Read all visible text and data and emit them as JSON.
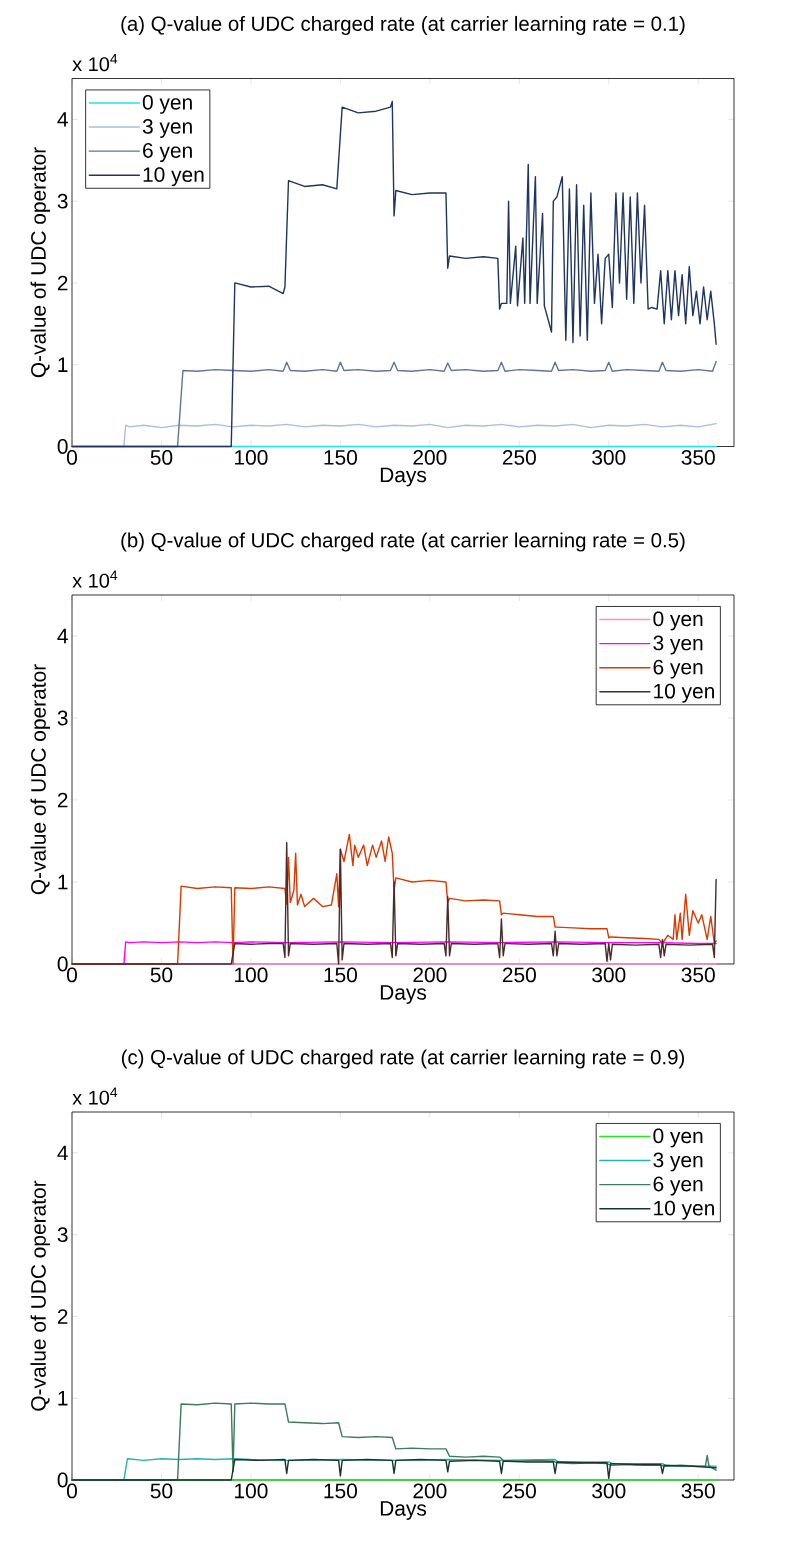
{
  "chart_data": [
    {
      "type": "line",
      "title": "(a) Q-value of UDC charged rate (at carrier learning rate = 0.1)",
      "xlabel": "Days",
      "ylabel": "Q-value of UDC operator",
      "annotations": [
        "x 10$^{4}$"
      ],
      "xlim": [
        0,
        370
      ],
      "ylim": [
        0,
        4.5
      ],
      "xticks": [
        0,
        50,
        100,
        150,
        200,
        250,
        300,
        350
      ],
      "yticks": [
        0,
        1,
        2,
        3,
        4
      ],
      "legend": "top left",
      "series": [
        {
          "name": "0 yen",
          "color": "#1ee6e6",
          "x": [
            0,
            360
          ],
          "values": [
            0,
            0
          ]
        },
        {
          "name": "3 yen",
          "color": "#a8bde6",
          "x": [
            0,
            29,
            30,
            32,
            40,
            50,
            60,
            70,
            80,
            90,
            100,
            110,
            120,
            130,
            140,
            150,
            160,
            170,
            180,
            190,
            200,
            210,
            220,
            230,
            240,
            250,
            260,
            270,
            280,
            290,
            300,
            310,
            320,
            330,
            340,
            350,
            360
          ],
          "values": [
            0,
            0,
            0.26,
            0.24,
            0.26,
            0.23,
            0.26,
            0.25,
            0.27,
            0.24,
            0.26,
            0.25,
            0.27,
            0.24,
            0.26,
            0.25,
            0.27,
            0.24,
            0.26,
            0.25,
            0.27,
            0.23,
            0.26,
            0.25,
            0.27,
            0.24,
            0.26,
            0.25,
            0.27,
            0.23,
            0.26,
            0.25,
            0.27,
            0.24,
            0.26,
            0.24,
            0.28
          ]
        },
        {
          "name": "6 yen",
          "color": "#5f7496",
          "x": [
            0,
            59,
            62,
            70,
            80,
            90,
            100,
            110,
            118,
            120,
            122,
            130,
            140,
            148,
            150,
            152,
            160,
            170,
            178,
            180,
            182,
            190,
            200,
            208,
            210,
            212,
            220,
            230,
            238,
            240,
            242,
            250,
            260,
            268,
            270,
            272,
            280,
            290,
            298,
            300,
            302,
            310,
            320,
            328,
            330,
            332,
            340,
            350,
            358,
            360
          ],
          "values": [
            0,
            0,
            0.93,
            0.92,
            0.94,
            0.93,
            0.92,
            0.94,
            0.92,
            1.03,
            0.93,
            0.92,
            0.94,
            0.92,
            1.03,
            0.93,
            0.94,
            0.92,
            0.93,
            1.03,
            0.93,
            0.92,
            0.94,
            0.92,
            1.02,
            0.93,
            0.94,
            0.92,
            0.93,
            1.03,
            0.92,
            0.94,
            0.93,
            0.92,
            1.03,
            0.93,
            0.94,
            0.92,
            0.93,
            1.03,
            0.92,
            0.94,
            0.93,
            0.92,
            1.03,
            0.93,
            0.92,
            0.94,
            0.92,
            1.04
          ]
        },
        {
          "name": "10 yen",
          "color": "#1f3560",
          "x": [
            0,
            89,
            91,
            100,
            110,
            118,
            119,
            121,
            130,
            140,
            148,
            151,
            160,
            170,
            178,
            179,
            180,
            181,
            190,
            200,
            209,
            210,
            211,
            220,
            230,
            238,
            239,
            240,
            243,
            244,
            245,
            248,
            249,
            252,
            253,
            255,
            256,
            259,
            260,
            263,
            264,
            268,
            269,
            271,
            274,
            276,
            278,
            280,
            282,
            284,
            286,
            288,
            290,
            292,
            294,
            296,
            298,
            300,
            302,
            304,
            306,
            308,
            310,
            312,
            314,
            316,
            318,
            320,
            322,
            324,
            327,
            329,
            331,
            333,
            335,
            337,
            339,
            341,
            343,
            345,
            347,
            349,
            351,
            353,
            355,
            357,
            359,
            360
          ],
          "values": [
            0,
            0,
            2.0,
            1.95,
            1.96,
            1.87,
            1.95,
            3.25,
            3.18,
            3.2,
            3.15,
            4.15,
            4.08,
            4.1,
            4.15,
            4.22,
            2.82,
            3.13,
            3.08,
            3.1,
            3.1,
            2.18,
            2.33,
            2.3,
            2.32,
            2.3,
            1.68,
            1.75,
            1.75,
            3.0,
            1.75,
            2.45,
            1.72,
            2.55,
            1.75,
            3.45,
            1.75,
            3.3,
            1.75,
            2.85,
            1.72,
            1.4,
            3.0,
            3.05,
            3.3,
            1.3,
            3.15,
            1.27,
            3.2,
            1.35,
            2.95,
            1.3,
            3.1,
            1.75,
            2.35,
            1.5,
            2.3,
            2.35,
            1.7,
            3.1,
            2.0,
            3.1,
            1.8,
            3.05,
            1.75,
            3.1,
            2.0,
            2.95,
            1.68,
            1.7,
            1.68,
            2.15,
            1.5,
            2.15,
            1.55,
            2.15,
            1.6,
            2.1,
            1.5,
            2.2,
            1.6,
            1.9,
            1.5,
            1.95,
            1.55,
            1.9,
            1.5,
            1.25
          ]
        }
      ]
    },
    {
      "type": "line",
      "title": "(b) Q-value of UDC charged rate (at carrier learning rate = 0.5)",
      "xlabel": "Days",
      "ylabel": "Q-value of UDC operator",
      "annotations": [
        "x 10$^{4}$"
      ],
      "xlim": [
        0,
        370
      ],
      "ylim": [
        0,
        4.5
      ],
      "xticks": [
        0,
        50,
        100,
        150,
        200,
        250,
        300,
        350
      ],
      "yticks": [
        0,
        1,
        2,
        3,
        4
      ],
      "legend": "top right",
      "series": [
        {
          "name": "0 yen",
          "color": "#ff8ec6",
          "x": [
            0,
            360
          ],
          "values": [
            0,
            0
          ]
        },
        {
          "name": "3 yen",
          "color": "#ff00ff",
          "x": [
            0,
            29,
            30,
            32,
            40,
            50,
            60,
            70,
            80,
            90,
            100,
            120,
            150,
            180,
            210,
            240,
            270,
            300,
            330,
            350,
            360
          ],
          "values": [
            0,
            0,
            0.27,
            0.26,
            0.27,
            0.26,
            0.27,
            0.26,
            0.27,
            0.26,
            0.27,
            0.26,
            0.27,
            0.26,
            0.27,
            0.26,
            0.27,
            0.26,
            0.26,
            0.25,
            0.25
          ]
        },
        {
          "name": "6 yen",
          "color": "#d93a00",
          "x": [
            0,
            59,
            61,
            70,
            80,
            89,
            90,
            91,
            100,
            110,
            119,
            120,
            121,
            122,
            124,
            125,
            126,
            128,
            130,
            135,
            140,
            145,
            148,
            149,
            150,
            152,
            155,
            157,
            158,
            160,
            163,
            165,
            168,
            170,
            173,
            175,
            177,
            179,
            180,
            181,
            190,
            200,
            209,
            210,
            211,
            220,
            230,
            239,
            240,
            241,
            250,
            260,
            269,
            270,
            271,
            280,
            290,
            299,
            300,
            301,
            310,
            320,
            328,
            330,
            333,
            336,
            337,
            338,
            340,
            341,
            343,
            345,
            347,
            350,
            352,
            355,
            357,
            359,
            360
          ],
          "values": [
            0,
            0,
            0.95,
            0.92,
            0.94,
            0.93,
            0.0,
            0.93,
            0.92,
            0.94,
            0.92,
            0.73,
            1.3,
            0.75,
            0.9,
            1.35,
            0.72,
            0.85,
            0.7,
            0.8,
            0.7,
            0.72,
            1.1,
            0.7,
            1.4,
            1.25,
            1.58,
            1.2,
            1.45,
            1.3,
            1.45,
            1.2,
            1.45,
            1.3,
            1.5,
            1.25,
            1.55,
            1.35,
            0.9,
            1.05,
            1.0,
            1.02,
            1.0,
            0.75,
            0.8,
            0.77,
            0.78,
            0.77,
            0.6,
            0.62,
            0.6,
            0.58,
            0.58,
            0.45,
            0.45,
            0.44,
            0.43,
            0.43,
            0.32,
            0.33,
            0.32,
            0.31,
            0.3,
            0.25,
            0.35,
            0.3,
            0.6,
            0.3,
            0.62,
            0.3,
            0.85,
            0.35,
            0.65,
            0.5,
            0.6,
            0.3,
            0.58,
            0.25,
            0.28
          ]
        },
        {
          "name": "10 yen",
          "color": "#4b2a2a",
          "x": [
            0,
            89,
            91,
            100,
            110,
            118,
            119,
            120,
            121,
            122,
            135,
            148,
            149,
            150,
            151,
            152,
            165,
            178,
            179,
            180,
            181,
            182,
            195,
            208,
            209,
            210,
            211,
            212,
            225,
            238,
            239,
            240,
            241,
            242,
            255,
            268,
            269,
            270,
            271,
            272,
            285,
            298,
            299,
            300,
            301,
            302,
            315,
            328,
            329,
            330,
            331,
            332,
            345,
            358,
            359,
            360
          ],
          "values": [
            0,
            0,
            0.25,
            0.24,
            0.25,
            0.25,
            0.08,
            1.48,
            0.1,
            0.25,
            0.24,
            0.25,
            0.0,
            1.4,
            0.05,
            0.25,
            0.24,
            0.25,
            0.08,
            1.0,
            0.1,
            0.25,
            0.24,
            0.25,
            0.1,
            0.82,
            0.1,
            0.25,
            0.24,
            0.25,
            0.08,
            0.55,
            0.1,
            0.25,
            0.24,
            0.25,
            0.1,
            0.4,
            0.1,
            0.25,
            0.24,
            0.25,
            0.03,
            0.25,
            0.05,
            0.24,
            0.23,
            0.24,
            0.08,
            0.3,
            0.1,
            0.24,
            0.23,
            0.24,
            0.08,
            1.03
          ]
        }
      ]
    },
    {
      "type": "line",
      "title": "(c) Q-value of UDC charged rate (at carrier learning rate = 0.9)",
      "xlabel": "Days",
      "ylabel": "Q-value of UDC operator",
      "annotations": [
        "x 10$^{4}$"
      ],
      "xlim": [
        0,
        370
      ],
      "ylim": [
        0,
        4.5
      ],
      "xticks": [
        0,
        50,
        100,
        150,
        200,
        250,
        300,
        350
      ],
      "yticks": [
        0,
        1,
        2,
        3,
        4
      ],
      "legend": "top right",
      "series": [
        {
          "name": "0 yen",
          "color": "#22e822",
          "x": [
            0,
            360
          ],
          "values": [
            0,
            0
          ]
        },
        {
          "name": "3 yen",
          "color": "#20b5b5",
          "x": [
            0,
            29,
            31,
            40,
            50,
            60,
            70,
            80,
            90,
            100,
            120,
            150,
            180,
            210,
            240,
            270,
            272,
            300,
            302,
            330,
            332,
            360
          ],
          "values": [
            0,
            0,
            0.26,
            0.24,
            0.26,
            0.25,
            0.26,
            0.25,
            0.26,
            0.25,
            0.24,
            0.25,
            0.24,
            0.25,
            0.24,
            0.25,
            0.22,
            0.22,
            0.2,
            0.2,
            0.17,
            0.17
          ]
        },
        {
          "name": "6 yen",
          "color": "#3d7a5e",
          "x": [
            0,
            59,
            61,
            70,
            80,
            89,
            90,
            91,
            100,
            110,
            119,
            121,
            130,
            140,
            149,
            151,
            160,
            170,
            179,
            181,
            190,
            200,
            209,
            211,
            220,
            230,
            239,
            241,
            250,
            260,
            269,
            271,
            280,
            290,
            299,
            301,
            310,
            320,
            329,
            331,
            340,
            350,
            354,
            355,
            356,
            360
          ],
          "values": [
            0,
            0,
            0.93,
            0.92,
            0.94,
            0.93,
            0.1,
            0.93,
            0.94,
            0.93,
            0.93,
            0.71,
            0.7,
            0.69,
            0.7,
            0.53,
            0.52,
            0.53,
            0.52,
            0.38,
            0.39,
            0.38,
            0.38,
            0.29,
            0.28,
            0.29,
            0.28,
            0.24,
            0.23,
            0.24,
            0.23,
            0.21,
            0.2,
            0.21,
            0.2,
            0.18,
            0.19,
            0.18,
            0.18,
            0.17,
            0.18,
            0.17,
            0.17,
            0.3,
            0.17,
            0.12
          ]
        },
        {
          "name": "10 yen",
          "color": "#173428",
          "x": [
            0,
            89,
            91,
            105,
            119,
            120,
            121,
            135,
            149,
            150,
            151,
            165,
            179,
            180,
            181,
            195,
            209,
            210,
            211,
            225,
            239,
            240,
            241,
            255,
            269,
            270,
            271,
            285,
            299,
            300,
            301,
            315,
            329,
            330,
            331,
            345,
            360
          ],
          "values": [
            0,
            0,
            0.25,
            0.24,
            0.25,
            0.08,
            0.24,
            0.25,
            0.24,
            0.05,
            0.24,
            0.25,
            0.24,
            0.08,
            0.24,
            0.25,
            0.24,
            0.1,
            0.23,
            0.24,
            0.23,
            0.08,
            0.23,
            0.22,
            0.22,
            0.08,
            0.22,
            0.21,
            0.21,
            0.02,
            0.2,
            0.19,
            0.19,
            0.08,
            0.18,
            0.17,
            0.15
          ]
        }
      ]
    }
  ]
}
